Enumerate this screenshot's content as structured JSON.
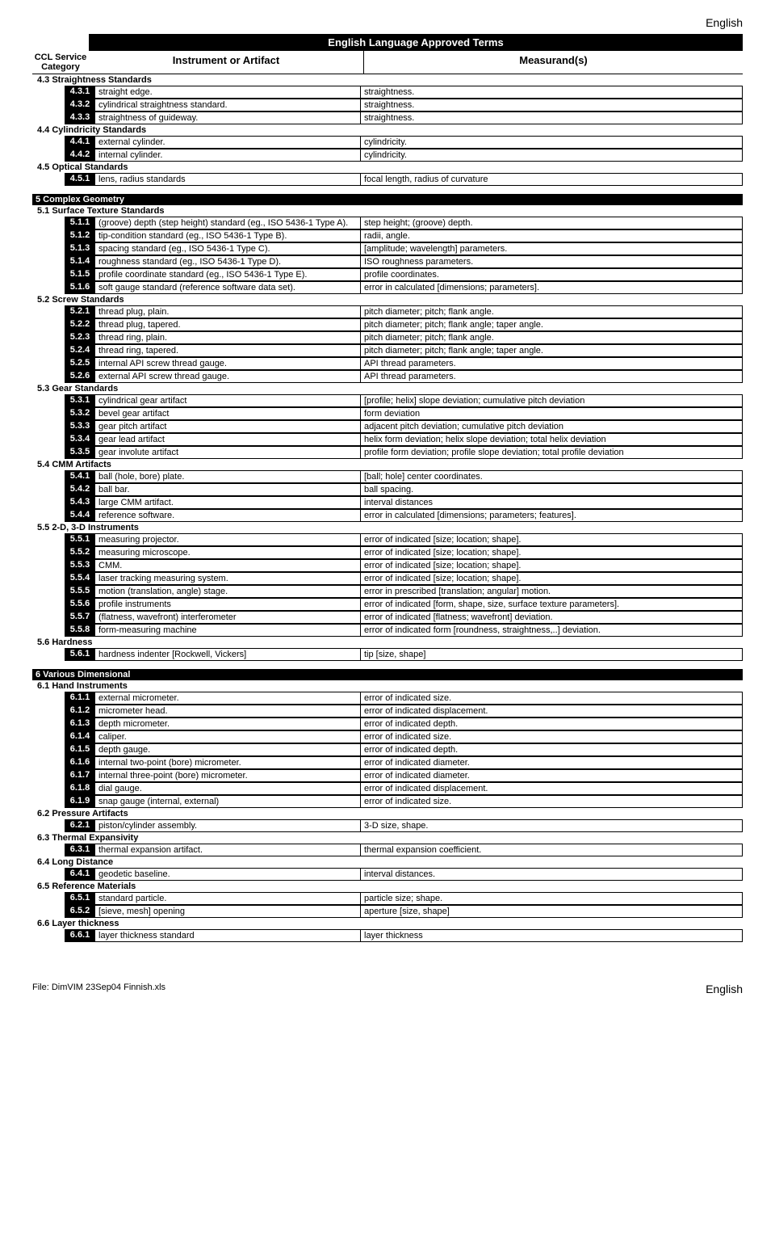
{
  "lang_label": "English",
  "header_title": "English Language Approved Terms",
  "header_cols": {
    "cat": "CCL Service Category",
    "inst": "Instrument or Artifact",
    "meas": "Measurand(s)"
  },
  "sections": [
    {
      "subs": [
        {
          "title": "4.3  Straightness Standards",
          "rows": [
            {
              "n": "4.3.1",
              "i": "straight edge.",
              "m": "straightness."
            },
            {
              "n": "4.3.2",
              "i": "cylindrical straightness standard.",
              "m": "straightness."
            },
            {
              "n": "4.3.3",
              "i": "straightness of guideway.",
              "m": "straightness."
            }
          ]
        },
        {
          "title": "4.4  Cylindricity Standards",
          "rows": [
            {
              "n": "4.4.1",
              "i": "external cylinder.",
              "m": "cylindricity."
            },
            {
              "n": "4.4.2",
              "i": "internal cylinder.",
              "m": "cylindricity."
            }
          ]
        },
        {
          "title": "4.5  Optical Standards",
          "rows": [
            {
              "n": "4.5.1",
              "i": "lens, radius standards",
              "m": "focal length, radius of curvature"
            }
          ]
        }
      ]
    },
    {
      "black": "5  Complex Geometry",
      "subs": [
        {
          "title": "5.1  Surface Texture Standards",
          "rows": [
            {
              "n": "5.1.1",
              "i": "(groove) depth (step height) standard (eg., ISO 5436-1 Type A).",
              "m": "step height; (groove) depth."
            },
            {
              "n": "5.1.2",
              "i": "tip-condition standard (eg., ISO 5436-1 Type B).",
              "m": "radii, angle."
            },
            {
              "n": "5.1.3",
              "i": "spacing standard (eg., ISO 5436-1 Type C).",
              "m": "[amplitude; wavelength] parameters."
            },
            {
              "n": "5.1.4",
              "i": "roughness standard (eg., ISO 5436-1 Type D).",
              "m": "ISO roughness parameters."
            },
            {
              "n": "5.1.5",
              "i": "profile coordinate standard (eg., ISO 5436-1 Type E).",
              "m": "profile coordinates."
            },
            {
              "n": "5.1.6",
              "i": "soft gauge standard (reference software data set).",
              "m": "error in calculated [dimensions; parameters]."
            }
          ]
        },
        {
          "title": "5.2  Screw Standards",
          "rows": [
            {
              "n": "5.2.1",
              "i": "thread plug, plain.",
              "m": "pitch diameter; pitch; flank angle."
            },
            {
              "n": "5.2.2",
              "i": "thread plug, tapered.",
              "m": "pitch diameter; pitch; flank angle; taper angle."
            },
            {
              "n": "5.2.3",
              "i": "thread ring, plain.",
              "m": "pitch diameter; pitch; flank angle."
            },
            {
              "n": "5.2.4",
              "i": "thread ring, tapered.",
              "m": "pitch diameter; pitch; flank angle; taper angle."
            },
            {
              "n": "5.2.5",
              "i": "internal API screw thread gauge.",
              "m": "API thread parameters."
            },
            {
              "n": "5.2.6",
              "i": "external API screw thread gauge.",
              "m": "API thread parameters."
            }
          ]
        },
        {
          "title": "5.3  Gear Standards",
          "rows": [
            {
              "n": "5.3.1",
              "i": "cylindrical gear artifact",
              "m": "[profile; helix] slope deviation; cumulative pitch deviation"
            },
            {
              "n": "5.3.2",
              "i": "bevel gear artifact",
              "m": "form deviation"
            },
            {
              "n": "5.3.3",
              "i": "gear pitch artifact",
              "m": "adjacent pitch deviation; cumulative pitch deviation"
            },
            {
              "n": "5.3.4",
              "i": "gear lead artifact",
              "m": "helix form deviation; helix slope deviation; total helix deviation"
            },
            {
              "n": "5.3.5",
              "i": "gear involute artifact",
              "m": "profile form deviation; profile slope deviation; total profile deviation"
            }
          ]
        },
        {
          "title": "5.4  CMM Artifacts",
          "rows": [
            {
              "n": "5.4.1",
              "i": "ball (hole, bore) plate.",
              "m": "[ball; hole] center coordinates."
            },
            {
              "n": "5.4.2",
              "i": "ball bar.",
              "m": "ball spacing."
            },
            {
              "n": "5.4.3",
              "i": "large CMM artifact.",
              "m": "interval distances"
            },
            {
              "n": "5.4.4",
              "i": "reference software.",
              "m": "error in calculated [dimensions; parameters; features]."
            }
          ]
        },
        {
          "title": "5.5  2-D, 3-D Instruments",
          "rows": [
            {
              "n": "5.5.1",
              "i": "measuring projector.",
              "m": "error of indicated [size; location; shape]."
            },
            {
              "n": "5.5.2",
              "i": "measuring microscope.",
              "m": "error of indicated [size; location; shape]."
            },
            {
              "n": "5.5.3",
              "i": "CMM.",
              "m": "error of indicated [size; location; shape]."
            },
            {
              "n": "5.5.4",
              "i": "laser tracking measuring system.",
              "m": "error of indicated [size; location; shape]."
            },
            {
              "n": "5.5.5",
              "i": "motion (translation, angle) stage.",
              "m": "error in prescribed [translation; angular] motion."
            },
            {
              "n": "5.5.6",
              "i": "profile instruments",
              "m": "error of indicated [form, shape, size, surface texture parameters]."
            },
            {
              "n": "5.5.7",
              "i": "(flatness, wavefront) interferometer",
              "m": "error of indicated [flatness; wavefront] deviation."
            },
            {
              "n": "5.5.8",
              "i": "form-measuring machine",
              "m": "error of indicated form [roundness, straightness,..] deviation."
            }
          ]
        },
        {
          "title": "5.6 Hardness",
          "rows": [
            {
              "n": "5.6.1",
              "i": "hardness indenter [Rockwell, Vickers]",
              "m": "tip [size, shape]"
            }
          ]
        }
      ]
    },
    {
      "black": "6  Various Dimensional",
      "subs": [
        {
          "title": "6.1  Hand Instruments",
          "rows": [
            {
              "n": "6.1.1",
              "i": "external micrometer.",
              "m": "error of indicated size."
            },
            {
              "n": "6.1.2",
              "i": "micrometer head.",
              "m": "error of indicated displacement."
            },
            {
              "n": "6.1.3",
              "i": "depth micrometer.",
              "m": "error of indicated depth."
            },
            {
              "n": "6.1.4",
              "i": "caliper.",
              "m": "error of indicated size."
            },
            {
              "n": "6.1.5",
              "i": "depth gauge.",
              "m": "error of indicated depth."
            },
            {
              "n": "6.1.6",
              "i": "internal two-point (bore) micrometer.",
              "m": "error of indicated diameter."
            },
            {
              "n": "6.1.7",
              "i": "internal three-point (bore) micrometer.",
              "m": "error of indicated diameter."
            },
            {
              "n": "6.1.8",
              "i": "dial gauge.",
              "m": "error of indicated displacement."
            },
            {
              "n": "6.1.9",
              "i": "snap gauge (internal, external)",
              "m": "error of indicated size."
            }
          ]
        },
        {
          "title": "6.2  Pressure Artifacts",
          "rows": [
            {
              "n": "6.2.1",
              "i": "piston/cylinder assembly.",
              "m": "3-D size, shape."
            }
          ]
        },
        {
          "title": "6.3  Thermal Expansivity",
          "rows": [
            {
              "n": "6.3.1",
              "i": "thermal expansion artifact.",
              "m": "thermal expansion coefficient."
            }
          ]
        },
        {
          "title": "6.4  Long Distance",
          "rows": [
            {
              "n": "6.4.1",
              "i": "geodetic baseline.",
              "m": "interval distances."
            }
          ]
        },
        {
          "title": "6.5  Reference Materials",
          "rows": [
            {
              "n": "6.5.1",
              "i": "standard particle.",
              "m": "particle size; shape."
            },
            {
              "n": "6.5.2",
              "i": "[sieve, mesh] opening",
              "m": "aperture [size, shape]"
            }
          ]
        },
        {
          "title": "6.6  Layer thickness",
          "rows": [
            {
              "n": "6.6.1",
              "i": "layer thickness standard",
              "m": "layer thickness"
            }
          ]
        }
      ]
    }
  ],
  "footer_left": "File:  DimVIM 23Sep04 Finnish.xls",
  "footer_right": "English"
}
